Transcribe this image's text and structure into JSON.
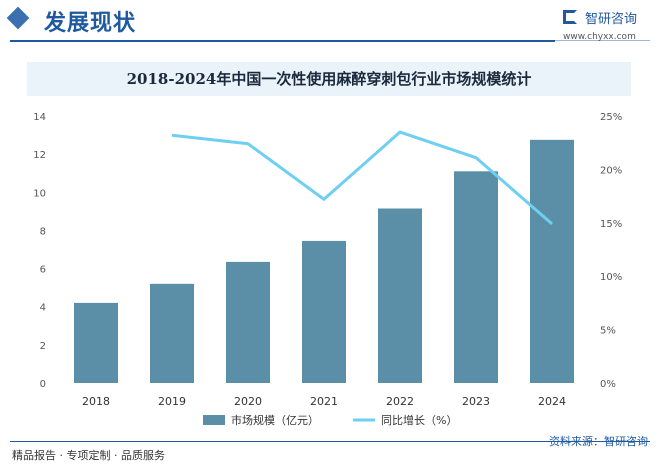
{
  "header": {
    "title": "发展现状",
    "logo_name": "智研咨询",
    "logo_url": "www.chyxx.com"
  },
  "chart_data": {
    "type": "bar",
    "title": "2018-2024年中国一次性使用麻醉穿刺包行业市场规模统计",
    "categories": [
      "2018",
      "2019",
      "2020",
      "2021",
      "2022",
      "2023",
      "2024"
    ],
    "series": [
      {
        "name": "市场规模（亿元）",
        "type": "bar",
        "axis": "left",
        "color": "#5b8fa8",
        "values": [
          4.2,
          5.2,
          6.35,
          7.45,
          9.15,
          11.1,
          12.75
        ]
      },
      {
        "name": "同比增长（%）",
        "type": "line",
        "axis": "right",
        "color": "#6ecff2",
        "values": [
          null,
          23.2,
          22.4,
          17.2,
          23.5,
          21.1,
          14.9
        ]
      }
    ],
    "left_axis": {
      "min": 0,
      "max": 14,
      "ticks": [
        "0",
        "2",
        "4",
        "6",
        "8",
        "10",
        "12",
        "14"
      ]
    },
    "right_axis": {
      "min": 0,
      "max": 25,
      "ticks": [
        "0%",
        "5%",
        "10%",
        "15%",
        "20%",
        "25%"
      ]
    },
    "grid": false,
    "legend_position": "bottom"
  },
  "footer": {
    "left_text": "精品报告 · 专项定制 · 品质服务",
    "source_text": "资料来源：智研咨询"
  }
}
